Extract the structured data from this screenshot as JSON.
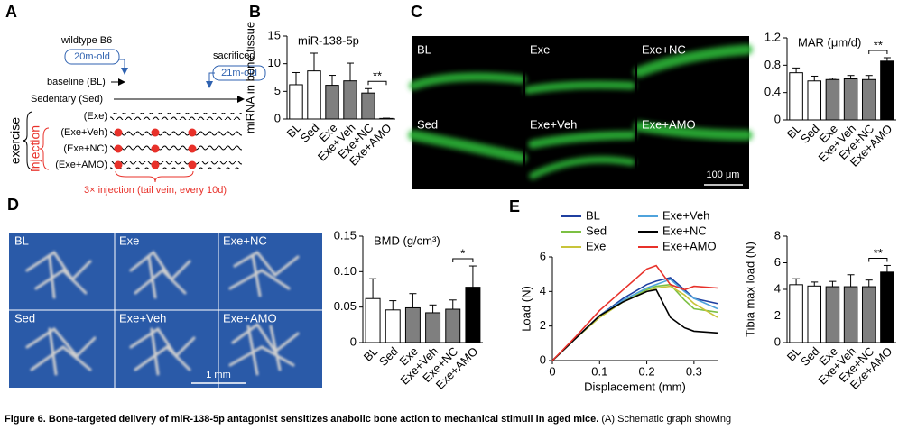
{
  "panel_labels": [
    "A",
    "B",
    "C",
    "D",
    "E"
  ],
  "schematic": {
    "strain": "wildtype B6",
    "start_age": "20m-old",
    "end_label": "sacrificed",
    "end_age": "21m-old",
    "groups": [
      "baseline (BL)",
      "Sedentary (Sed)",
      "(Exe)",
      "(Exe+Veh)",
      "(Exe+NC)",
      "(Exe+AMO)"
    ],
    "exercise": "exercise",
    "injection": "Injection",
    "injection_note": "3× injection (tail vein, every 10d)"
  },
  "images_c": {
    "labels": [
      "BL",
      "Exe",
      "Exe+NC",
      "Sed",
      "Exe+Veh",
      "Exe+AMO"
    ],
    "scale": "100 μm"
  },
  "images_d": {
    "labels": [
      "BL",
      "Exe",
      "Exe+NC",
      "Sed",
      "Exe+Veh",
      "Exe+AMO"
    ],
    "scale": "1 mm"
  },
  "chart_data": [
    {
      "type": "bar",
      "title": "miR-138-5p",
      "y_label": "miRNA in bone tissue",
      "categories": [
        "BL",
        "Sed",
        "Exe",
        "Exe+Veh",
        "Exe+NC",
        "Exe+AMO"
      ],
      "values": [
        6.2,
        8.7,
        6.1,
        6.9,
        4.7,
        0.1
      ],
      "errors": [
        2.2,
        3.2,
        1.8,
        3.2,
        0.8,
        0.05
      ],
      "colors": [
        "#ffffff",
        "#ffffff",
        "#7f7f7f",
        "#7f7f7f",
        "#7f7f7f",
        "#000000"
      ],
      "ylim": [
        0,
        15
      ],
      "yticks": [
        0,
        5,
        10,
        15
      ],
      "annotation": "**"
    },
    {
      "type": "bar",
      "title": "MAR (μm/d)",
      "categories": [
        "BL",
        "Sed",
        "Exe",
        "Exe+Veh",
        "Exe+NC",
        "Exe+AMO"
      ],
      "values": [
        0.69,
        0.57,
        0.59,
        0.6,
        0.59,
        0.86
      ],
      "errors": [
        0.07,
        0.07,
        0.02,
        0.05,
        0.06,
        0.05
      ],
      "colors": [
        "#ffffff",
        "#ffffff",
        "#7f7f7f",
        "#7f7f7f",
        "#7f7f7f",
        "#000000"
      ],
      "ylim": [
        0,
        1.2
      ],
      "yticks": [
        0,
        0.4,
        0.8,
        1.2
      ],
      "annotation": "**"
    },
    {
      "type": "bar",
      "title": "BMD (g/cm³)",
      "categories": [
        "BL",
        "Sed",
        "Exe",
        "Exe+Veh",
        "Exe+NC",
        "Exe+AMO"
      ],
      "values": [
        0.062,
        0.046,
        0.049,
        0.042,
        0.047,
        0.078
      ],
      "errors": [
        0.028,
        0.013,
        0.02,
        0.011,
        0.013,
        0.03
      ],
      "colors": [
        "#ffffff",
        "#ffffff",
        "#7f7f7f",
        "#7f7f7f",
        "#7f7f7f",
        "#000000"
      ],
      "ylim": [
        0,
        0.15
      ],
      "yticks": [
        0,
        0.05,
        {
          "value": 0.1,
          "label": "0.10"
        },
        0.15
      ],
      "annotation": "*"
    },
    {
      "type": "line",
      "x_label": "Displacement (mm)",
      "y_label": "Load (N)",
      "x": [
        0,
        0.05,
        0.1,
        0.15,
        0.2,
        0.22,
        0.25,
        0.28,
        0.3,
        0.35
      ],
      "series": [
        {
          "name": "BL",
          "color": "#1f3fa0",
          "values": [
            0,
            1.3,
            2.6,
            3.6,
            4.4,
            4.6,
            4.8,
            4.1,
            3.6,
            3.3
          ]
        },
        {
          "name": "Sed",
          "color": "#7cc043",
          "values": [
            0,
            1.3,
            2.5,
            3.4,
            4.1,
            4.3,
            4.4,
            3.5,
            3.0,
            2.8
          ]
        },
        {
          "name": "Exe",
          "color": "#c8c43a",
          "values": [
            0,
            1.3,
            2.5,
            3.4,
            4.0,
            4.2,
            4.3,
            3.8,
            3.3,
            2.5
          ]
        },
        {
          "name": "Exe+Veh",
          "color": "#4fa3dc",
          "values": [
            0,
            1.3,
            2.6,
            3.5,
            4.2,
            4.4,
            4.7,
            4.0,
            3.6,
            3.0
          ]
        },
        {
          "name": "Exe+NC",
          "color": "#000000",
          "values": [
            0,
            1.3,
            2.6,
            3.4,
            4.0,
            4.1,
            2.5,
            1.9,
            1.7,
            1.6
          ]
        },
        {
          "name": "Exe+AMO",
          "color": "#e8312a",
          "values": [
            0,
            1.4,
            2.9,
            4.1,
            5.3,
            5.5,
            4.4,
            4.1,
            4.3,
            4.2
          ]
        }
      ],
      "xlim": [
        0,
        0.35
      ],
      "xticks": [
        0,
        0.1,
        0.2,
        0.3
      ],
      "ylim": [
        0,
        6
      ],
      "yticks": [
        0,
        2,
        4,
        6
      ]
    },
    {
      "type": "bar",
      "y_label": "Tibia max load (N)",
      "categories": [
        "BL",
        "Sed",
        "Exe",
        "Exe+Veh",
        "Exe+NC",
        "Exe+AMO"
      ],
      "values": [
        4.35,
        4.25,
        4.2,
        4.2,
        4.2,
        5.3
      ],
      "errors": [
        0.45,
        0.3,
        0.4,
        0.9,
        0.5,
        0.5
      ],
      "colors": [
        "#ffffff",
        "#ffffff",
        "#7f7f7f",
        "#7f7f7f",
        "#7f7f7f",
        "#000000"
      ],
      "ylim": [
        0,
        8
      ],
      "yticks": [
        0,
        2,
        4,
        6,
        8
      ],
      "annotation": "**"
    }
  ],
  "caption": {
    "title": "Figure 6. Bone-targeted delivery of miR-138-5p antagonist sensitizes anabolic bone action to mechanical stimuli in aged mice.",
    "text": " (A) Schematic graph showing"
  }
}
